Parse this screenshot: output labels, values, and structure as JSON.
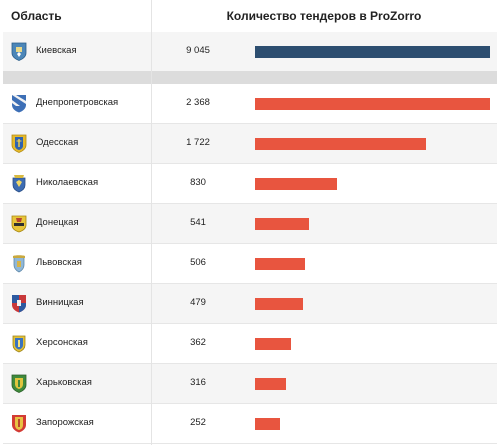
{
  "header": {
    "region_label": "Область",
    "count_label": "Количество тендеров в ProZorro"
  },
  "colors": {
    "bar_top": "#2d4e70",
    "bar": "#e8553f"
  },
  "chart_data": {
    "type": "bar",
    "orientation": "horizontal",
    "title": "",
    "categories": [
      "Киевская",
      "Днепропетровская",
      "Одесская",
      "Николаевская",
      "Донецкая",
      "Львовская",
      "Винницкая",
      "Херсонская",
      "Харьковская",
      "Запорожская"
    ],
    "values": [
      9045,
      2368,
      1722,
      830,
      541,
      506,
      479,
      362,
      316,
      252
    ],
    "value_labels": [
      "9 045",
      "2 368",
      "1 722",
      "830",
      "541",
      "506",
      "479",
      "362",
      "316",
      "252"
    ],
    "bar_colors": [
      "#2d4e70",
      "#e8553f",
      "#e8553f",
      "#e8553f",
      "#e8553f",
      "#e8553f",
      "#e8553f",
      "#e8553f",
      "#e8553f",
      "#e8553f"
    ],
    "scale_groups": [
      {
        "rows": [
          0
        ],
        "max": 9045
      },
      {
        "rows": [
          1,
          2,
          3,
          4,
          5,
          6,
          7,
          8,
          9
        ],
        "max": 2368
      }
    ]
  },
  "crest_icons": [
    "kyiv-crest-icon",
    "dnipropetrovsk-crest-icon",
    "odesa-crest-icon",
    "mykolaiv-crest-icon",
    "donetsk-crest-icon",
    "lviv-crest-icon",
    "vinnytsia-crest-icon",
    "kherson-crest-icon",
    "kharkiv-crest-icon",
    "zaporizhzhia-crest-icon"
  ]
}
